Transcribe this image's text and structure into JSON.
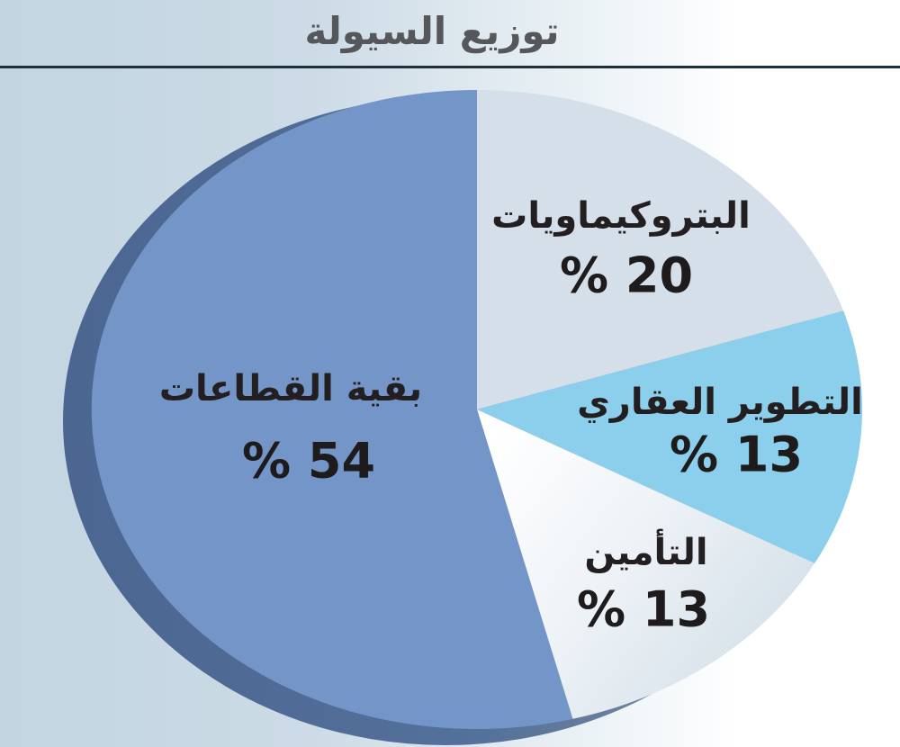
{
  "header": {
    "title": "توزيع السيولة"
  },
  "palette": {
    "background_left": "#c2d5e1",
    "background_right": "#ffffff",
    "divider": "#20303a",
    "title_color": "#55575b",
    "label_color": "#231f20",
    "pie_side_color": "#4e6890"
  },
  "chart_data": {
    "type": "pie",
    "title": "توزيع السيولة",
    "style": "3d-ellipse",
    "direction": "clockwise",
    "start_angle_deg": 0,
    "legend_position": "none",
    "slices": [
      {
        "id": "petrochemicals",
        "label": "البتروكيماويات",
        "value": 20,
        "display": "% 20",
        "color": "#d5dfe9"
      },
      {
        "id": "real-estate-development",
        "label": "التطوير العقاري",
        "value": 13,
        "display": "% 13",
        "color": "#8ccfec"
      },
      {
        "id": "insurance",
        "label": "التأمين",
        "value": 13,
        "display": "% 13",
        "color": "#f3f7f9",
        "gradient": "insuranceGrad"
      },
      {
        "id": "other-sectors",
        "label": "بقية القطاعات",
        "value": 54,
        "display": "% 54",
        "color": "#7495c8"
      }
    ]
  }
}
